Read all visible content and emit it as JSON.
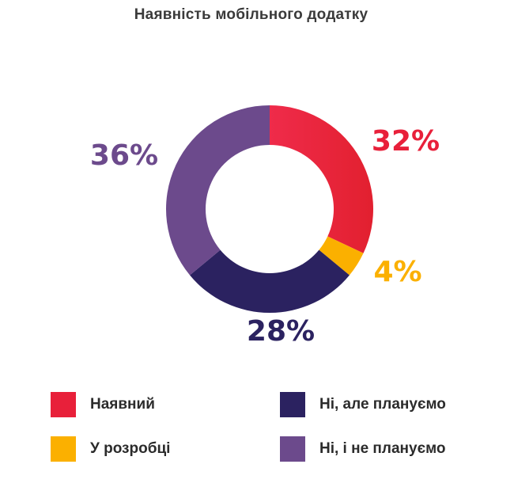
{
  "chart_data": {
    "type": "pie",
    "title": "Наявність мобільного додатку",
    "categories": [
      "Наявний",
      "У розробці",
      "Ні, але плануємо",
      "Ні, і не плануємо"
    ],
    "values": [
      32,
      4,
      28,
      36
    ],
    "value_labels": [
      "32%",
      "4%",
      "28%",
      "36%"
    ],
    "colors": [
      "#e8203a",
      "#fbb000",
      "#2b2260",
      "#6c4a8c"
    ],
    "donut": true,
    "start_angle_deg": 0,
    "direction": "clockwise",
    "legend_position": "bottom"
  }
}
